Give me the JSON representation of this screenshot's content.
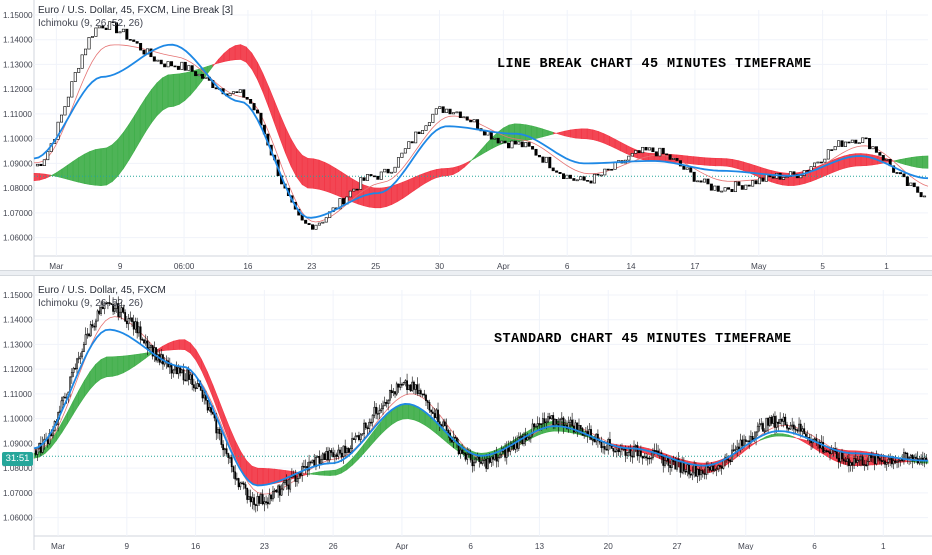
{
  "colors": {
    "cloud_bull": "#3fae49",
    "cloud_bear": "#f23645",
    "base_line": "#1e88e5",
    "conversion_line": "#e57373",
    "candles": "#000000",
    "price_line": "#26a69a",
    "axis_text": "#434651",
    "grid": "#f0f3fa"
  },
  "top": {
    "legend": {
      "symbol": "Euro / U.S. Dollar, 45, FXCM, Line Break [3]",
      "indicator": "Ichimoku (9, 26, 52, 26)"
    },
    "overlay_title": "LINE BREAK CHART 45 MINUTES TIMEFRAME",
    "price_ticks": [
      "1.15000",
      "1.14000",
      "1.13000",
      "1.12000",
      "1.11000",
      "1.10000",
      "1.09000",
      "1.08000",
      "1.07000",
      "1.06000"
    ],
    "time_ticks": [
      "Mar",
      "9",
      "06:00",
      "16",
      "23",
      "25",
      "30",
      "Apr",
      "6",
      "14",
      "17",
      "May",
      "5",
      "1"
    ]
  },
  "bottom": {
    "legend": {
      "symbol": "Euro / U.S. Dollar, 45, FXCM",
      "indicator": "Ichimoku (9, 26, 52, 26)"
    },
    "overlay_title": "STANDARD CHART 45 MINUTES TIMEFRAME",
    "price_tag": "31:51",
    "price_ticks": [
      "1.15000",
      "1.14000",
      "1.13000",
      "1.12000",
      "1.11000",
      "1.10000",
      "1.09000",
      "1.08000",
      "1.07000",
      "1.06000"
    ],
    "time_ticks": [
      "Mar",
      "9",
      "16",
      "23",
      "26",
      "Apr",
      "6",
      "13",
      "20",
      "27",
      "May",
      "6",
      "1"
    ]
  },
  "chart_data": [
    {
      "type": "line",
      "chart": "EUR/USD 45m Line Break with Ichimoku",
      "ylim": [
        1.055,
        1.152
      ],
      "last_price": 1.0848,
      "x": [
        "Mar",
        "9",
        "06:00",
        "16",
        "23",
        "25",
        "30",
        "Apr",
        "6",
        "14",
        "17",
        "May",
        "5",
        "1"
      ],
      "series": [
        {
          "name": "price",
          "values": [
            1.089,
            1.146,
            1.13,
            1.118,
            1.065,
            1.085,
            1.112,
            1.098,
            1.083,
            1.095,
            1.08,
            1.085,
            1.1,
            1.078
          ]
        },
        {
          "name": "base",
          "values": [
            1.092,
            1.125,
            1.138,
            1.115,
            1.068,
            1.078,
            1.105,
            1.102,
            1.09,
            1.091,
            1.087,
            1.085,
            1.093,
            1.084
          ]
        },
        {
          "name": "span_a",
          "values": [
            1.083,
            1.096,
            1.126,
            1.132,
            1.08,
            1.072,
            1.085,
            1.106,
            1.1,
            1.091,
            1.089,
            1.081,
            1.089,
            1.093
          ]
        },
        {
          "name": "span_b",
          "values": [
            1.086,
            1.081,
            1.113,
            1.138,
            1.092,
            1.08,
            1.088,
            1.099,
            1.104,
            1.094,
            1.092,
            1.086,
            1.094,
            1.088
          ]
        }
      ]
    },
    {
      "type": "line",
      "chart": "EUR/USD 45m Standard with Ichimoku",
      "ylim": [
        1.055,
        1.152
      ],
      "last_price": 1.0848,
      "x": [
        "Mar",
        "9",
        "16",
        "23",
        "26",
        "Apr",
        "6",
        "13",
        "20",
        "27",
        "May",
        "6",
        "1"
      ],
      "series": [
        {
          "name": "price",
          "values": [
            1.087,
            1.145,
            1.118,
            1.067,
            1.085,
            1.113,
            1.082,
            1.099,
            1.087,
            1.079,
            1.099,
            1.083,
            1.084
          ]
        },
        {
          "name": "base",
          "values": [
            1.088,
            1.136,
            1.121,
            1.073,
            1.082,
            1.106,
            1.085,
            1.097,
            1.088,
            1.081,
            1.095,
            1.086,
            1.083
          ]
        },
        {
          "name": "span_a",
          "values": [
            1.086,
            1.125,
            1.128,
            1.073,
            1.079,
            1.106,
            1.086,
            1.099,
            1.087,
            1.078,
            1.094,
            1.081,
            1.083
          ]
        },
        {
          "name": "span_b",
          "values": [
            1.084,
            1.117,
            1.132,
            1.08,
            1.077,
            1.1,
            1.083,
            1.095,
            1.089,
            1.082,
            1.093,
            1.087,
            1.082
          ]
        }
      ]
    }
  ]
}
